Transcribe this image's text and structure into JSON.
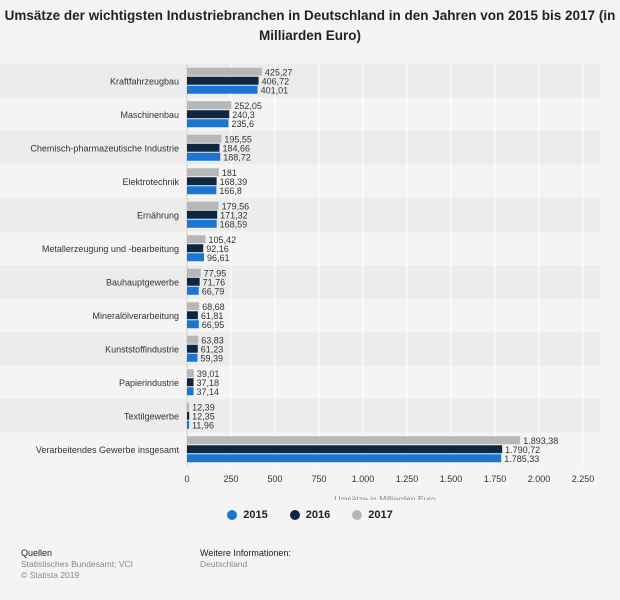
{
  "title": "Umsätze der wichtigsten Industriebranchen in Deutschland in den Jahren von 2015 bis 2017 (in Milliarden Euro)",
  "chart_data": {
    "type": "bar",
    "orientation": "horizontal",
    "categories": [
      "Kraftfahrzeugbau",
      "Maschinenbau",
      "Chemisch-pharmazeutische Industrie",
      "Elektrotechnik",
      "Ernährung",
      "Metallerzeugung und -bearbeitung",
      "Bauhauptgewerbe",
      "Mineralölverarbeitung",
      "Kunststoffindustrie",
      "Papierindustrie",
      "Textilgewerbe",
      "Verarbeitendes Gewerbe insgesamt"
    ],
    "series": [
      {
        "name": "2017",
        "color": "#b7b7b7",
        "values": [
          425.27,
          252.05,
          195.55,
          181,
          179.56,
          105.42,
          77.95,
          68.68,
          63.83,
          39.01,
          12.39,
          1893.38
        ],
        "labels": [
          "425,27",
          "252,05",
          "195,55",
          "181",
          "179,56",
          "105,42",
          "77,95",
          "68,68",
          "63,83",
          "39,01",
          "12,39",
          "1.893,38"
        ]
      },
      {
        "name": "2016",
        "color": "#0f2641",
        "values": [
          406.72,
          240.3,
          184.66,
          168.39,
          171.32,
          92.16,
          71.76,
          61.81,
          61.23,
          37.18,
          12.35,
          1790.72
        ],
        "labels": [
          "406,72",
          "240,3",
          "184,66",
          "168,39",
          "171,32",
          "92,16",
          "71,76",
          "61,81",
          "61,23",
          "37,18",
          "12,35",
          "1.790,72"
        ]
      },
      {
        "name": "2015",
        "color": "#1a76d2",
        "values": [
          401.01,
          235.6,
          188.72,
          166.8,
          168.59,
          96.61,
          66.79,
          66.95,
          59.39,
          37.14,
          11.96,
          1785.33
        ],
        "labels": [
          "401,01",
          "235,6",
          "188,72",
          "166,8",
          "168,59",
          "96,61",
          "66,79",
          "66,95",
          "59,39",
          "37,14",
          "11,96",
          "1.785,33"
        ]
      }
    ],
    "xlabel": "Umsätze in Milliarden Euro",
    "xlim": [
      0,
      2250
    ],
    "xticks": [
      0,
      250,
      500,
      750,
      1000,
      1250,
      1500,
      1750,
      2000,
      2250
    ],
    "xtick_labels": [
      "0",
      "250",
      "500",
      "750",
      "1.000",
      "1.250",
      "1.500",
      "1.750",
      "2.000",
      "2.250"
    ],
    "grid": true,
    "legend_position": "bottom"
  },
  "legend": [
    {
      "label": "2015",
      "color": "#1a76d2"
    },
    {
      "label": "2016",
      "color": "#0f2641"
    },
    {
      "label": "2017",
      "color": "#b7b7b7"
    }
  ],
  "footer": {
    "sources_heading": "Quellen",
    "sources_line1": "Statistisches Bundesamt; VCI",
    "sources_line2": "© Statista 2019",
    "info_heading": "Weitere Informationen:",
    "info_line1": "Deutschland"
  }
}
